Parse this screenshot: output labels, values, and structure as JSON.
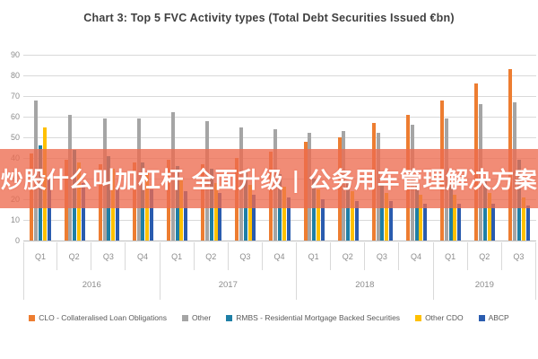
{
  "title": "Chart 3: Top 5 FVC Activity types (Total Debt Securities Issued €bn)",
  "overlay": {
    "text": "炒股什么叫加杠杆 全面升级 | 公务用车管理解决方案",
    "background": "#ED6C50",
    "background_opacity": 0.78,
    "text_color": "#FFFFFF"
  },
  "axis": {
    "tick_color": "#8C8C8C",
    "grid_color": "#D9D9D9",
    "label_color": "#595959"
  },
  "chart_data": {
    "type": "bar",
    "title": "Chart 3: Top 5 FVC Activity types (Total Debt Securities Issued €bn)",
    "xlabel": "",
    "ylabel": "",
    "ylim": [
      0,
      90
    ],
    "ytick_step": 10,
    "yticks": [
      0,
      10,
      20,
      30,
      40,
      50,
      60,
      70,
      80,
      90
    ],
    "grid": true,
    "legend_position": "bottom",
    "years": [
      {
        "label": "2016",
        "quarters": [
          "Q1",
          "Q2",
          "Q3",
          "Q4"
        ]
      },
      {
        "label": "2017",
        "quarters": [
          "Q1",
          "Q2",
          "Q3",
          "Q4"
        ]
      },
      {
        "label": "2018",
        "quarters": [
          "Q1",
          "Q2",
          "Q3",
          "Q4"
        ]
      },
      {
        "label": "2019",
        "quarters": [
          "Q1",
          "Q2",
          "Q3"
        ]
      }
    ],
    "categories": [
      "2016 Q1",
      "2016 Q2",
      "2016 Q3",
      "2016 Q4",
      "2017 Q1",
      "2017 Q2",
      "2017 Q3",
      "2017 Q4",
      "2018 Q1",
      "2018 Q2",
      "2018 Q3",
      "2018 Q4",
      "2019 Q1",
      "2019 Q2",
      "2019 Q3"
    ],
    "series": [
      {
        "name": "CLO - Collateralised Loan Obligations",
        "color": "#ED7D31",
        "values": [
          42,
          39,
          37,
          38,
          39,
          37,
          40,
          43,
          48,
          50,
          57,
          61,
          68,
          76,
          83
        ]
      },
      {
        "name": "Other",
        "color": "#A5A5A5",
        "values": [
          68,
          61,
          59,
          59,
          62,
          58,
          55,
          54,
          52,
          53,
          52,
          56,
          59,
          66,
          67
        ]
      },
      {
        "name": "RMBS - Residential Mortgage Backed Securities",
        "color": "#1E7FA6",
        "values": [
          46,
          44,
          41,
          38,
          36,
          35,
          33,
          32,
          30,
          29,
          28,
          28,
          27,
          29,
          39
        ]
      },
      {
        "name": "Other CDO",
        "color": "#FFC000",
        "values": [
          55,
          38,
          35,
          33,
          30,
          28,
          27,
          26,
          25,
          24,
          23,
          22,
          22,
          23,
          21
        ]
      },
      {
        "name": "ABCP",
        "color": "#2A5CAF",
        "values": [
          30,
          28,
          26,
          25,
          24,
          23,
          22,
          21,
          20,
          19,
          19,
          18,
          18,
          18,
          17
        ]
      }
    ]
  }
}
